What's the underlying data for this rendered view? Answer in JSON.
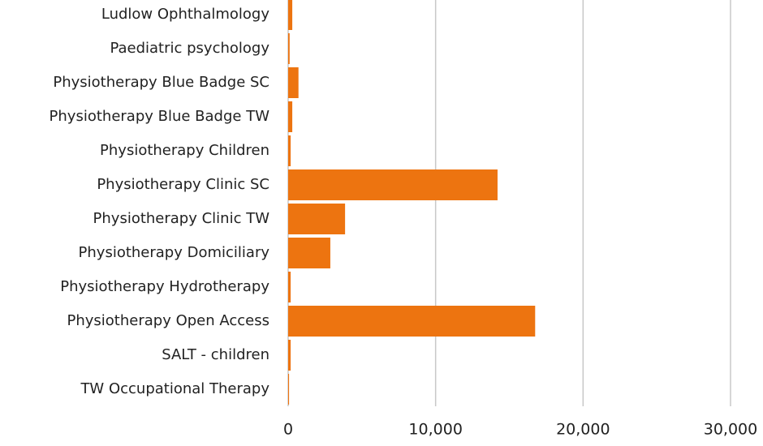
{
  "chart_data": {
    "type": "hbar",
    "categories": [
      "Ludlow Ophthalmology",
      "Paediatric psychology",
      "Physiotherapy Blue Badge SC",
      "Physiotherapy Blue Badge TW",
      "Physiotherapy Children",
      "Physiotherapy Clinic SC",
      "Physiotherapy Clinic TW",
      "Physiotherapy Domiciliary",
      "Physiotherapy Hydrotherapy",
      "Physiotherapy Open Access",
      "SALT - children",
      "TW Occupational Therapy"
    ],
    "values": [
      280,
      100,
      700,
      280,
      170,
      14200,
      3860,
      2860,
      170,
      16750,
      170,
      60
    ],
    "color": "#ed7410",
    "xlim": [
      0,
      30000
    ],
    "xticks": [
      0,
      {
        "value": 10000,
        "label": "10,000"
      },
      {
        "value": 20000,
        "label": "20,000"
      },
      {
        "value": 30000,
        "label": "30,000"
      }
    ],
    "grid": true
  }
}
